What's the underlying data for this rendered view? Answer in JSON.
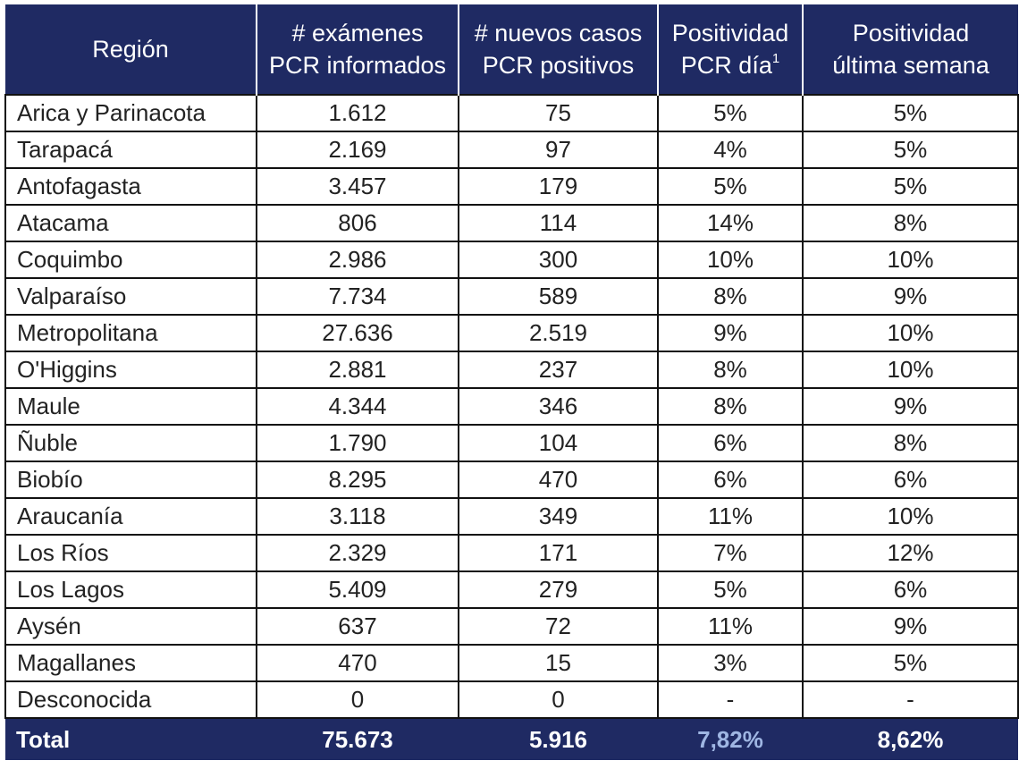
{
  "columns": [
    {
      "line1": "Región",
      "line2": ""
    },
    {
      "line1": "# exámenes",
      "line2": "PCR informados"
    },
    {
      "line1": "# nuevos casos",
      "line2": "PCR positivos"
    },
    {
      "line1": "Positividad",
      "line2": "PCR día",
      "sup": "1"
    },
    {
      "line1": "Positividad",
      "line2": "última semana"
    }
  ],
  "rows": [
    {
      "region": "Arica y Parinacota",
      "exams": "1.612",
      "cases": "75",
      "pos_day": "5%",
      "pos_week": "5%"
    },
    {
      "region": "Tarapacá",
      "exams": "2.169",
      "cases": "97",
      "pos_day": "4%",
      "pos_week": "5%"
    },
    {
      "region": "Antofagasta",
      "exams": "3.457",
      "cases": "179",
      "pos_day": "5%",
      "pos_week": "5%"
    },
    {
      "region": "Atacama",
      "exams": "806",
      "cases": "114",
      "pos_day": "14%",
      "pos_week": "8%"
    },
    {
      "region": "Coquimbo",
      "exams": "2.986",
      "cases": "300",
      "pos_day": "10%",
      "pos_week": "10%"
    },
    {
      "region": "Valparaíso",
      "exams": "7.734",
      "cases": "589",
      "pos_day": "8%",
      "pos_week": "9%"
    },
    {
      "region": "Metropolitana",
      "exams": "27.636",
      "cases": "2.519",
      "pos_day": "9%",
      "pos_week": "10%"
    },
    {
      "region": "O'Higgins",
      "exams": "2.881",
      "cases": "237",
      "pos_day": "8%",
      "pos_week": "10%"
    },
    {
      "region": "Maule",
      "exams": "4.344",
      "cases": "346",
      "pos_day": "8%",
      "pos_week": "9%"
    },
    {
      "region": "Ñuble",
      "exams": "1.790",
      "cases": "104",
      "pos_day": "6%",
      "pos_week": "8%"
    },
    {
      "region": "Biobío",
      "exams": "8.295",
      "cases": "470",
      "pos_day": "6%",
      "pos_week": "6%"
    },
    {
      "region": "Araucanía",
      "exams": "3.118",
      "cases": "349",
      "pos_day": "11%",
      "pos_week": "10%"
    },
    {
      "region": "Los Ríos",
      "exams": "2.329",
      "cases": "171",
      "pos_day": "7%",
      "pos_week": "12%"
    },
    {
      "region": "Los Lagos",
      "exams": "5.409",
      "cases": "279",
      "pos_day": "5%",
      "pos_week": "6%"
    },
    {
      "region": "Aysén",
      "exams": "637",
      "cases": "72",
      "pos_day": "11%",
      "pos_week": "9%"
    },
    {
      "region": "Magallanes",
      "exams": "470",
      "cases": "15",
      "pos_day": "3%",
      "pos_week": "5%"
    },
    {
      "region": "Desconocida",
      "exams": "0",
      "cases": "0",
      "pos_day": "-",
      "pos_week": "-"
    }
  ],
  "total": {
    "region": "Total",
    "exams": "75.673",
    "cases": "5.916",
    "pos_day": "7,82%",
    "pos_week": "8,62%"
  },
  "colors": {
    "header_bg": "#1f2a63",
    "header_text": "#ffffff",
    "total_highlight": "#9fb6e3",
    "border": "#111111"
  }
}
